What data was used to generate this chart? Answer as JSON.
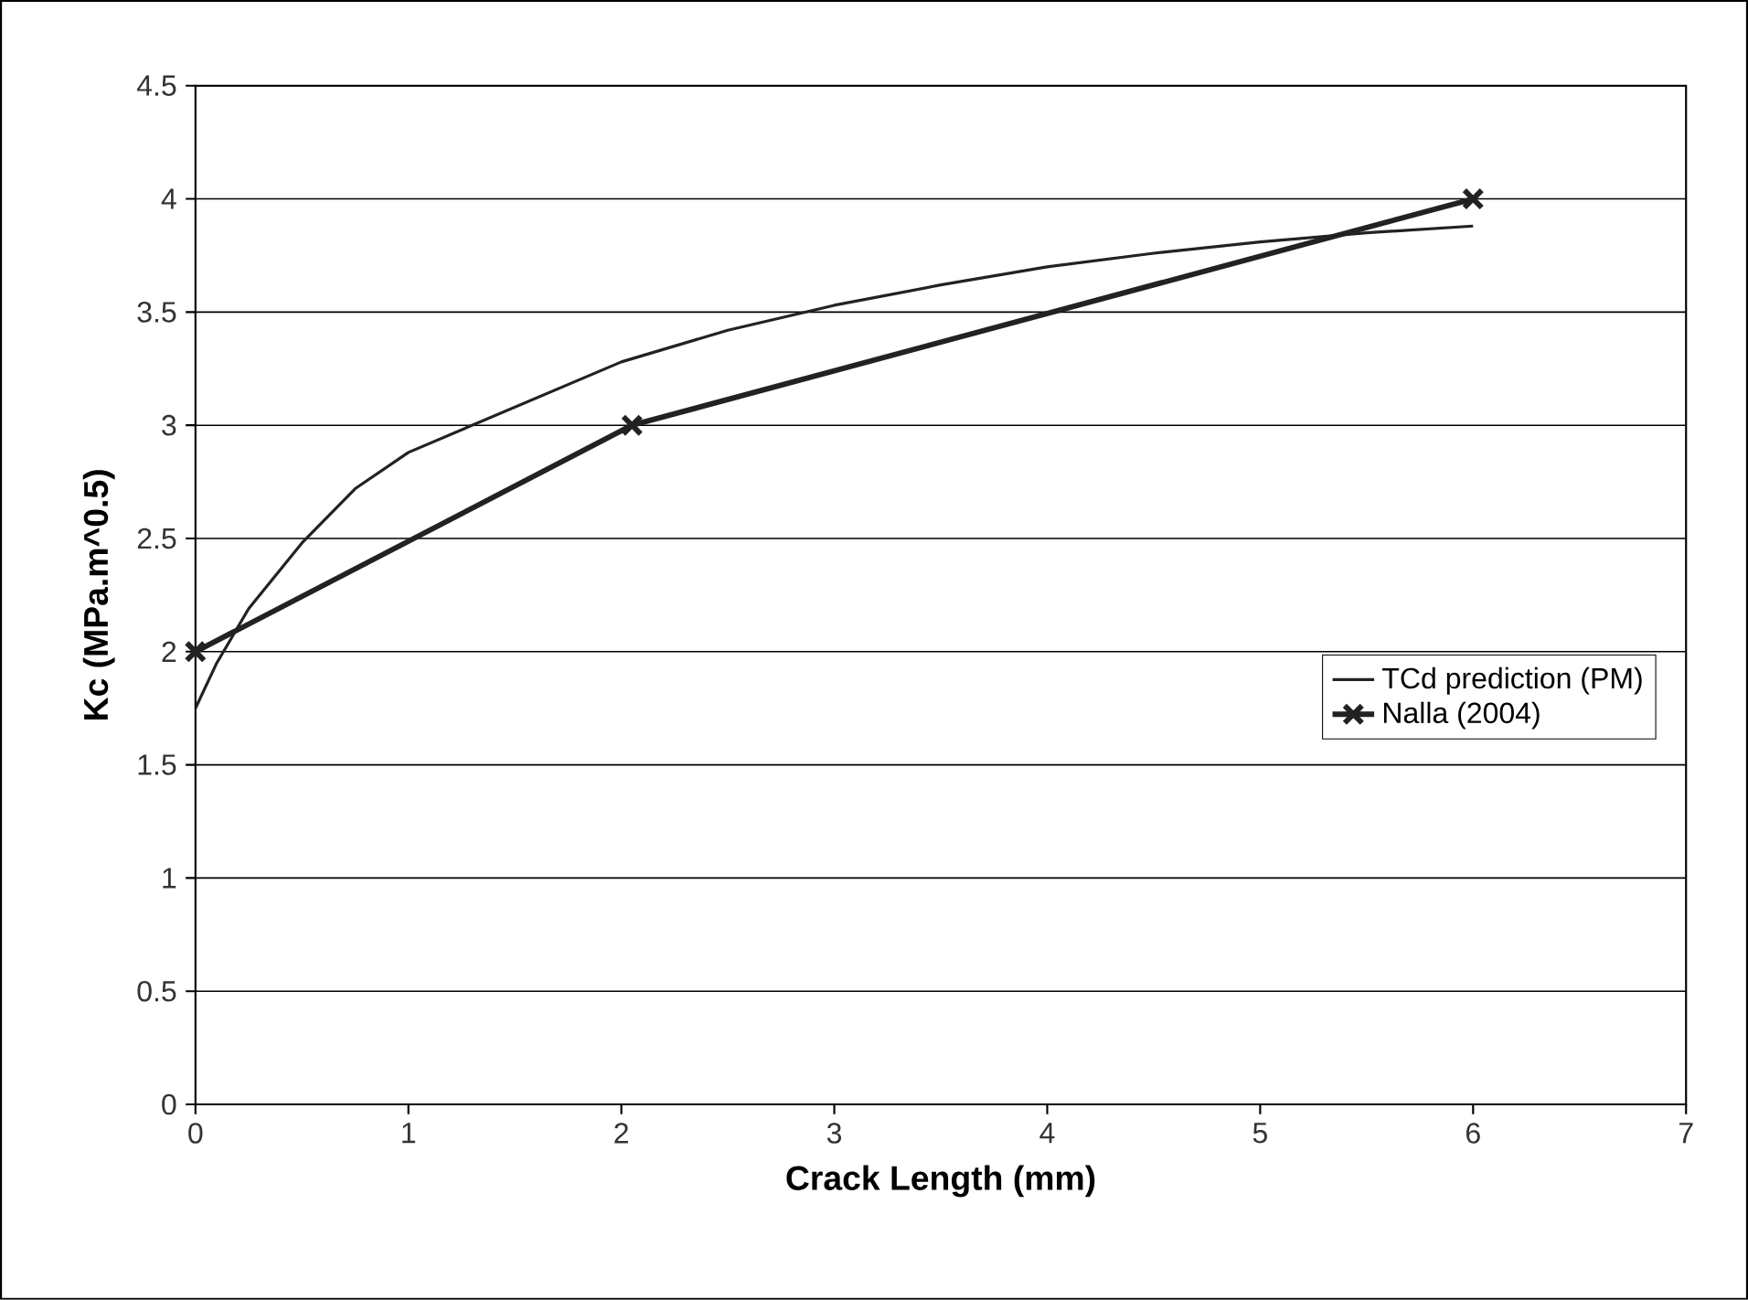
{
  "chart_data": {
    "type": "line",
    "xlabel": "Crack Length (mm)",
    "ylabel": "Kc (MPa.m^0.5)",
    "xlim": [
      0,
      7
    ],
    "xticks": [
      0,
      1,
      2,
      3,
      4,
      5,
      6,
      7
    ],
    "ylim": [
      0,
      4.5
    ],
    "yticks": [
      0,
      0.5,
      1,
      1.5,
      2,
      2.5,
      3,
      3.5,
      4,
      4.5
    ],
    "grid": "y",
    "legend": "right",
    "series": [
      {
        "name": "TCd prediction (PM)",
        "color": "#222222",
        "marker": "none",
        "x": [
          0,
          0.1,
          0.25,
          0.5,
          0.75,
          1,
          1.5,
          2,
          2.5,
          3,
          3.5,
          4,
          4.5,
          5,
          5.5,
          6
        ],
        "values": [
          1.75,
          1.95,
          2.19,
          2.48,
          2.72,
          2.88,
          3.08,
          3.28,
          3.42,
          3.53,
          3.62,
          3.7,
          3.76,
          3.81,
          3.85,
          3.88
        ]
      },
      {
        "name": "Nalla (2004)",
        "color": "#222222",
        "marker": "cross",
        "x": [
          0,
          2.05,
          6
        ],
        "values": [
          2,
          3,
          4
        ]
      }
    ]
  }
}
